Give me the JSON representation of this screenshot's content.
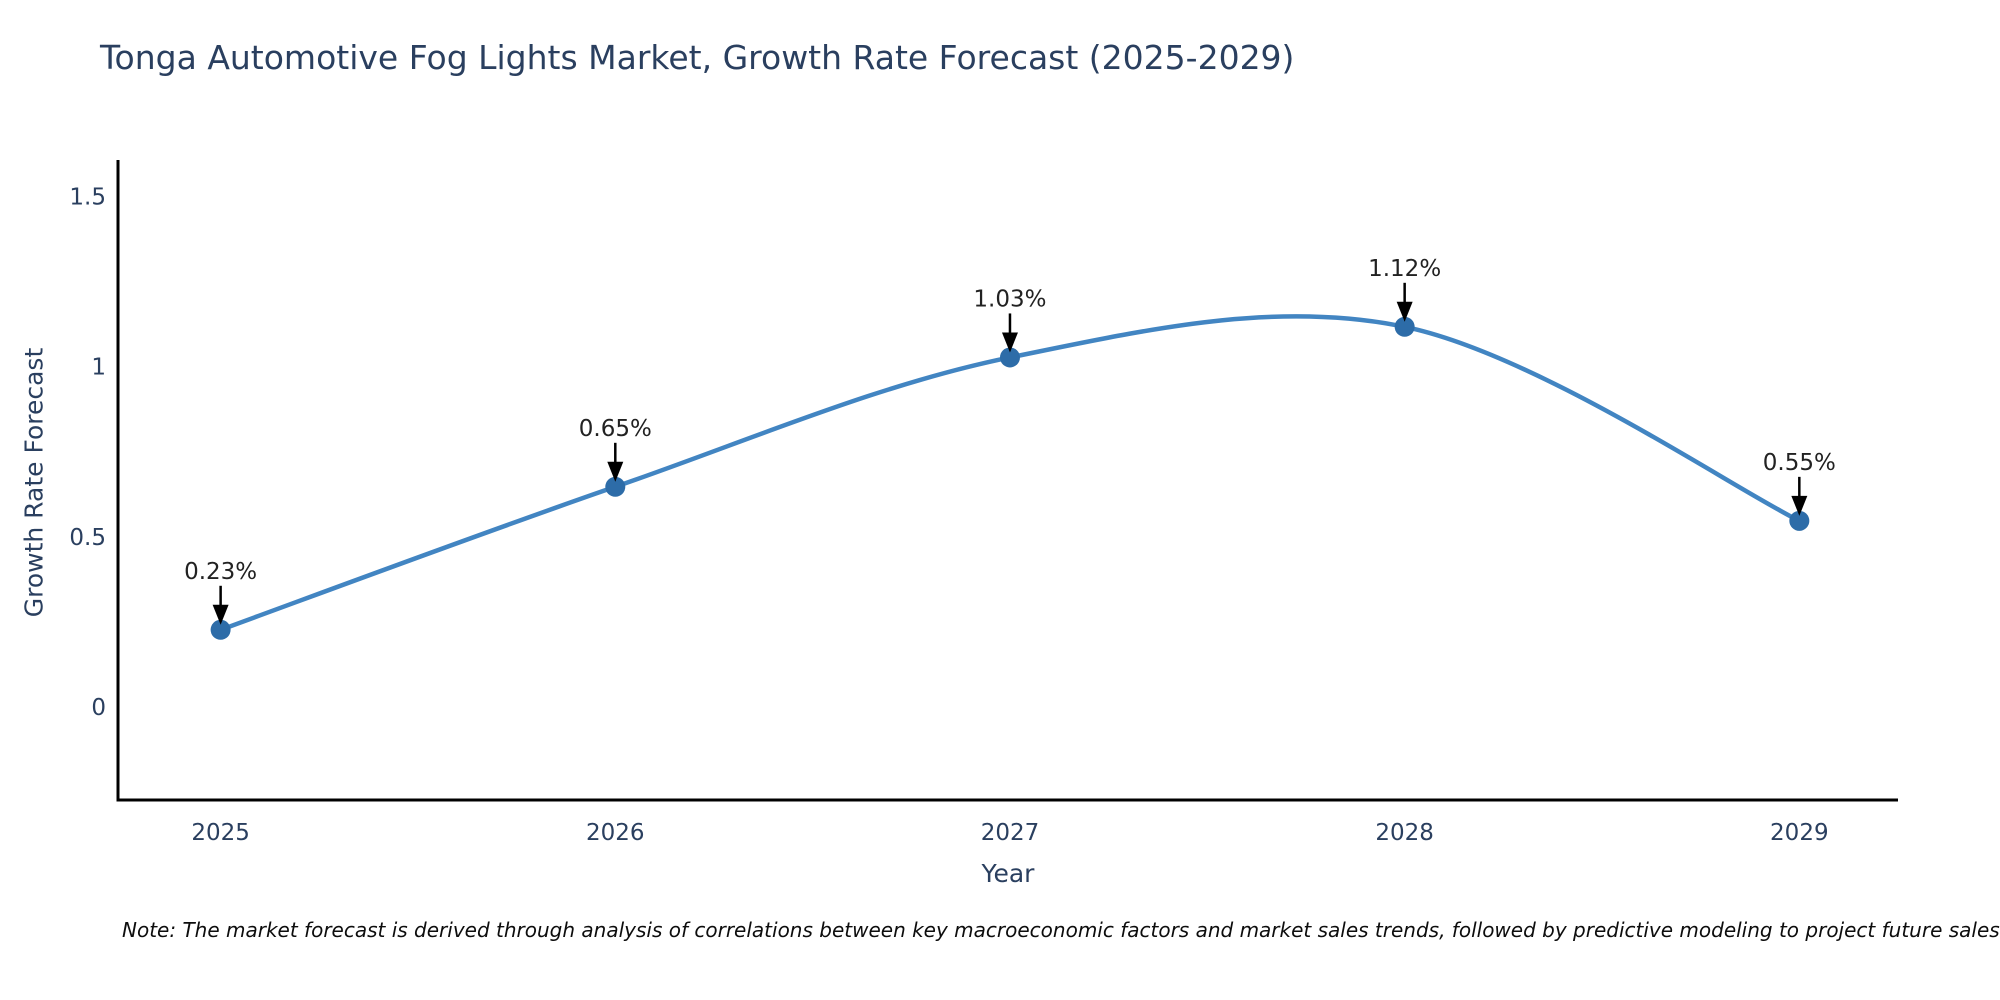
{
  "title": "Tonga Automotive Fog Lights Market, Growth Rate Forecast (2025-2029)",
  "note": "Note: The market forecast is derived through analysis of correlations between key macroeconomic factors and market sales trends, followed by predictive modeling to project future sales",
  "colors": {
    "title_text": "#2a3f5f",
    "tick_text": "#2a3f5f",
    "annotation_text": "#222222",
    "axis_line": "#000000",
    "trend_line": "#4285c2",
    "marker_fill": "#2d6ca8",
    "arrow": "#000000",
    "background": "#ffffff"
  },
  "chart_data": {
    "type": "line",
    "title": "Tonga Automotive Fog Lights Market, Growth Rate Forecast (2025-2029)",
    "xlabel": "Year",
    "ylabel": "Growth Rate Forecast",
    "categories": [
      2025,
      2026,
      2027,
      2028,
      2029
    ],
    "values": [
      0.23,
      0.65,
      1.03,
      1.12,
      0.55
    ],
    "point_labels": [
      "0.23%",
      "0.65%",
      "1.03%",
      "1.12%",
      "0.55%"
    ],
    "series": [
      {
        "name": "Growth Rate Forecast",
        "values": [
          0.23,
          0.65,
          1.03,
          1.12,
          0.55
        ]
      }
    ],
    "xtick_labels": [
      "2025",
      "2026",
      "2027",
      "2028",
      "2029"
    ],
    "ytick_values": [
      0,
      0.5,
      1,
      1.5
    ],
    "ytick_labels": [
      "0",
      "0.5",
      "1",
      "1.5"
    ],
    "xlim": [
      2024.74,
      2029.25
    ],
    "ylim": [
      -0.27,
      1.61
    ],
    "grid": false,
    "legend": false,
    "line_shape": "spline",
    "annotations_have_arrows": true
  }
}
